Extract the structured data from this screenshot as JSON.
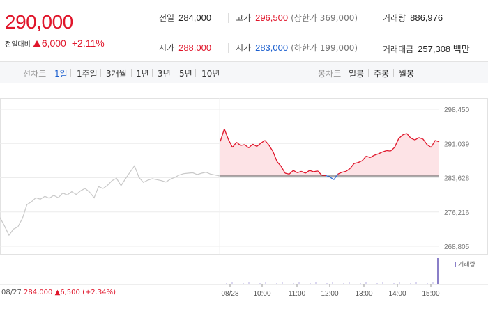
{
  "quote": {
    "price": "290,000",
    "change_label": "전일대비",
    "change_value": "6,000",
    "change_pct": "+2.11%",
    "stats": {
      "prev_close": {
        "label": "전일",
        "value": "284,000"
      },
      "high": {
        "label": "고가",
        "value": "296,500",
        "sub": "(상한가 369,000)"
      },
      "volume": {
        "label": "거래량",
        "value": "886,976"
      },
      "open": {
        "label": "시가",
        "value": "288,000"
      },
      "low": {
        "label": "저가",
        "value": "283,000",
        "sub": "(하한가 199,000)"
      },
      "amount": {
        "label": "거래대금",
        "value": "257,308 백만"
      }
    }
  },
  "tabs": {
    "line_header": "선차트",
    "line_periods": [
      "1일",
      "1주일",
      "3개월",
      "1년",
      "3년",
      "5년",
      "10년"
    ],
    "active_line_period": "1일",
    "candle_header": "봉차트",
    "candle_periods": [
      "일봉",
      "주봉",
      "월봉"
    ]
  },
  "chart_data": {
    "type": "line",
    "y_ticks": [
      "298,450",
      "291,039",
      "283,628",
      "276,216",
      "268,805"
    ],
    "ylim": [
      268805,
      298450
    ],
    "baseline": 284000,
    "x_ticks": [
      "08/27",
      "08/28",
      "10:00",
      "11:00",
      "12:00",
      "13:00",
      "14:00",
      "15:00"
    ],
    "grid": "horizontal",
    "volume_legend": "거래량",
    "prev_day_info": {
      "date": "08/27",
      "close": "284,000",
      "change": "▲6,500",
      "pct": "(+2.34%)"
    },
    "series": [
      {
        "values": [
          275000,
          273200,
          271200,
          272500,
          273000,
          274800,
          277800,
          278400,
          279300,
          279000,
          279600,
          279200,
          279800,
          279300,
          280300,
          279900,
          280600,
          280000,
          280800,
          281300,
          280500,
          279300,
          281700,
          281300,
          282000,
          283000,
          283500,
          281900,
          283400,
          284800,
          286200,
          283700,
          282600,
          283100,
          283400,
          283200,
          283000,
          282700,
          283300,
          283700,
          284200,
          284500,
          284600,
          284700,
          284300,
          284600,
          284800,
          284400,
          284200,
          284000
        ]
      },
      {
        "values": [
          291500,
          294200,
          291900,
          290200,
          291300,
          290600,
          290800,
          290100,
          290900,
          290400,
          291100,
          291700,
          290700,
          289300,
          287100,
          286100,
          284600,
          284400,
          285200,
          284700,
          285000,
          284600,
          285200,
          284900,
          285100,
          284200,
          284100,
          283800,
          283200,
          284400,
          284800,
          285000,
          285600,
          286700,
          286900,
          287300,
          288300,
          288000,
          288500,
          288800,
          289200,
          289500,
          289400,
          290200,
          292100,
          292900,
          293200,
          292200,
          291800,
          292300,
          292000,
          290800,
          290200,
          291700,
          291400
        ]
      }
    ]
  }
}
